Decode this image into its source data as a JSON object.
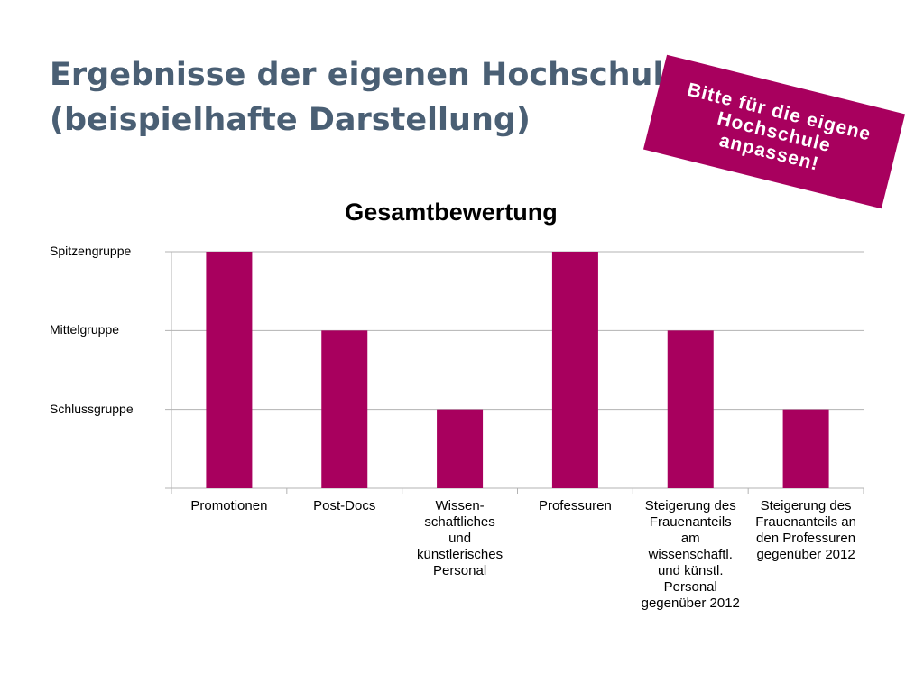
{
  "slide": {
    "title_lines": [
      "Ergebnisse der eigenen Hochschule",
      "(beispielhafte Darstellung)"
    ]
  },
  "sticker": {
    "lines": [
      "Bitte für die eigene",
      "Hochschule",
      "anpassen!"
    ],
    "color": "#a8005e"
  },
  "chart_data": {
    "type": "bar",
    "title": "Gesamtbewertung",
    "categories": [
      [
        "Promotionen"
      ],
      [
        "Post-Docs"
      ],
      [
        "Wissen-",
        "schaftliches",
        "und",
        "künstlerisches",
        "Personal"
      ],
      [
        "Professuren"
      ],
      [
        "Steigerung des",
        "Frauenanteils",
        "am",
        "wissenschaftl.",
        "und künstl.",
        "Personal",
        "gegenüber 2012"
      ],
      [
        "Steigerung des",
        "Frauenanteils an",
        "den Professuren",
        "gegenüber 2012"
      ]
    ],
    "values": [
      3,
      2,
      1,
      3,
      2,
      1
    ],
    "y_ticks": [
      {
        "value": 3,
        "label": "Spitzengruppe"
      },
      {
        "value": 2,
        "label": "Mittelgruppe"
      },
      {
        "value": 1,
        "label": "Schlussgruppe"
      }
    ],
    "ylim": [
      0,
      3
    ],
    "grid": true,
    "bar_color": "#a8005e",
    "grid_color": "#b3b3b3"
  }
}
